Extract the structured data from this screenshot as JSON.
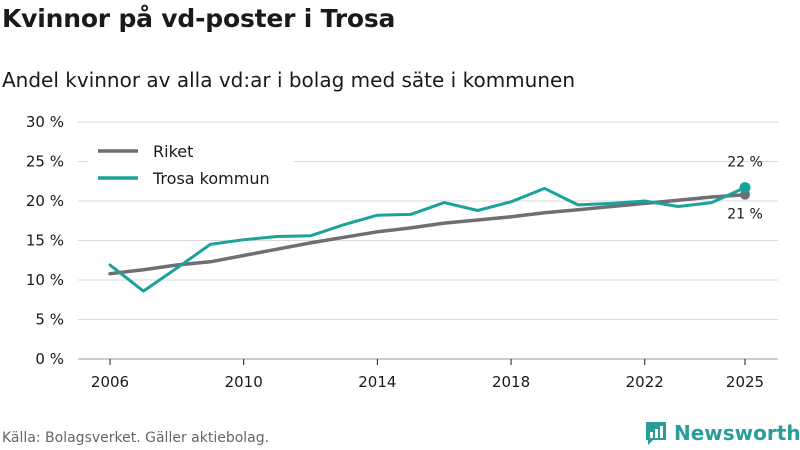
{
  "title": "Kvinnor på vd-poster i Trosa",
  "subtitle": "Andel kvinnor av alla vd:ar i bolag med säte i kommunen",
  "source": "Källa: Bolagsverket. Gäller aktiebolag.",
  "brand": "Newsworthy",
  "colors": {
    "riket": "#6f6e71",
    "trosa": "#1aa39a",
    "grid": "#d9d9d9",
    "brand": "#2a9d99"
  },
  "chart_data": {
    "type": "line",
    "title": "Kvinnor på vd-poster i Trosa",
    "subtitle": "Andel kvinnor av alla vd:ar i bolag med säte i kommunen",
    "xlabel": "",
    "ylabel": "",
    "xlim": [
      2006,
      2025
    ],
    "ylim": [
      0,
      30
    ],
    "x_ticks": [
      2006,
      2010,
      2014,
      2018,
      2022,
      2025
    ],
    "y_ticks": [
      0,
      5,
      10,
      15,
      20,
      25,
      30
    ],
    "y_tick_labels": [
      "0 %",
      "5 %",
      "10 %",
      "15 %",
      "20 %",
      "25 %",
      "30 %"
    ],
    "grid": true,
    "legend": "top-left",
    "x": [
      2006,
      2007,
      2008,
      2009,
      2010,
      2011,
      2012,
      2013,
      2014,
      2015,
      2016,
      2017,
      2018,
      2019,
      2020,
      2021,
      2022,
      2023,
      2024,
      2025
    ],
    "series": [
      {
        "name": "Riket",
        "key": "riket",
        "values": [
          10.8,
          11.3,
          11.9,
          12.3,
          13.1,
          13.9,
          14.7,
          15.4,
          16.1,
          16.6,
          17.2,
          17.6,
          18.0,
          18.5,
          18.9,
          19.3,
          19.7,
          20.1,
          20.5,
          20.8
        ],
        "end_label": "21 %"
      },
      {
        "name": "Trosa kommun",
        "key": "trosa",
        "values": [
          11.9,
          8.6,
          11.5,
          14.5,
          15.1,
          15.5,
          15.6,
          17.0,
          18.2,
          18.3,
          19.8,
          18.8,
          19.9,
          21.6,
          19.5,
          19.7,
          20.0,
          19.3,
          19.8,
          21.7
        ],
        "end_label": "22 %"
      }
    ]
  }
}
